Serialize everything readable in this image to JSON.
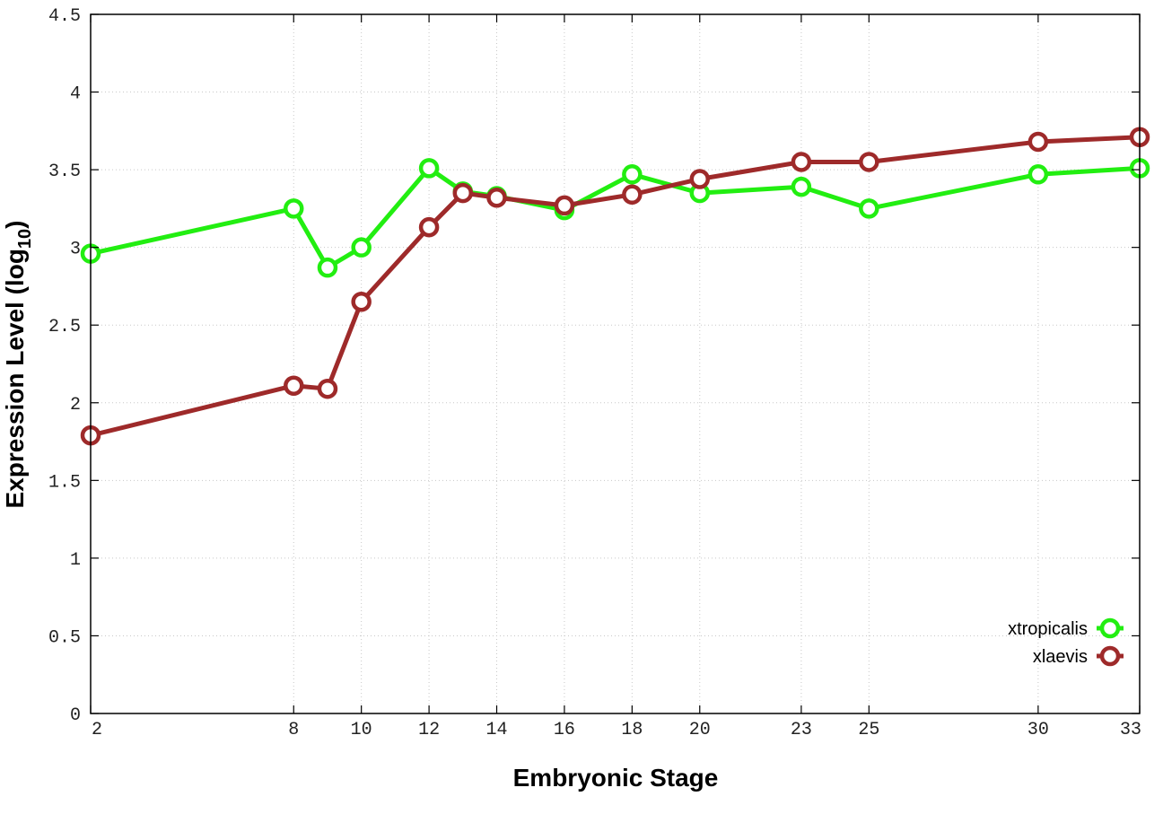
{
  "chart_data": {
    "type": "line",
    "xlabel": "Embryonic Stage",
    "ylabel_main": "Expression Level (log",
    "ylabel_sub": "10",
    "ylabel_close": ")",
    "xlim": [
      2,
      33
    ],
    "ylim": [
      0,
      4.5
    ],
    "grid": true,
    "legend_position": "bottom-right",
    "x_ticks": [
      {
        "value": 2,
        "label": "2"
      },
      {
        "value": 8,
        "label": "8"
      },
      {
        "value": 10,
        "label": "10"
      },
      {
        "value": 12,
        "label": "12"
      },
      {
        "value": 14,
        "label": "14"
      },
      {
        "value": 16,
        "label": "16"
      },
      {
        "value": 18,
        "label": "18"
      },
      {
        "value": 20,
        "label": "20"
      },
      {
        "value": 23,
        "label": "23"
      },
      {
        "value": 25,
        "label": "25"
      },
      {
        "value": 30,
        "label": "30"
      },
      {
        "value": 33,
        "label": "33"
      }
    ],
    "y_ticks": [
      {
        "value": 0,
        "label": "0"
      },
      {
        "value": 0.5,
        "label": "0.5"
      },
      {
        "value": 1,
        "label": "1"
      },
      {
        "value": 1.5,
        "label": "1.5"
      },
      {
        "value": 2,
        "label": "2"
      },
      {
        "value": 2.5,
        "label": "2.5"
      },
      {
        "value": 3,
        "label": "3"
      },
      {
        "value": 3.5,
        "label": "3.5"
      },
      {
        "value": 4,
        "label": "4"
      },
      {
        "value": 4.5,
        "label": "4.5"
      }
    ],
    "series": [
      {
        "name": "xtropicalis",
        "color": "#22ee11",
        "points": [
          [
            2,
            2.96
          ],
          [
            8,
            3.25
          ],
          [
            9,
            2.87
          ],
          [
            10,
            3.0
          ],
          [
            12,
            3.51
          ],
          [
            13,
            3.36
          ],
          [
            14,
            3.33
          ],
          [
            16,
            3.24
          ],
          [
            18,
            3.47
          ],
          [
            20,
            3.35
          ],
          [
            23,
            3.39
          ],
          [
            25,
            3.25
          ],
          [
            30,
            3.47
          ],
          [
            33,
            3.51
          ]
        ]
      },
      {
        "name": "xlaevis",
        "color": "#9e2a2a",
        "points": [
          [
            2,
            1.79
          ],
          [
            8,
            2.11
          ],
          [
            9,
            2.09
          ],
          [
            10,
            2.65
          ],
          [
            12,
            3.13
          ],
          [
            13,
            3.35
          ],
          [
            14,
            3.32
          ],
          [
            16,
            3.27
          ],
          [
            18,
            3.34
          ],
          [
            20,
            3.44
          ],
          [
            23,
            3.55
          ],
          [
            25,
            3.55
          ],
          [
            30,
            3.68
          ],
          [
            33,
            3.71
          ]
        ]
      }
    ]
  }
}
